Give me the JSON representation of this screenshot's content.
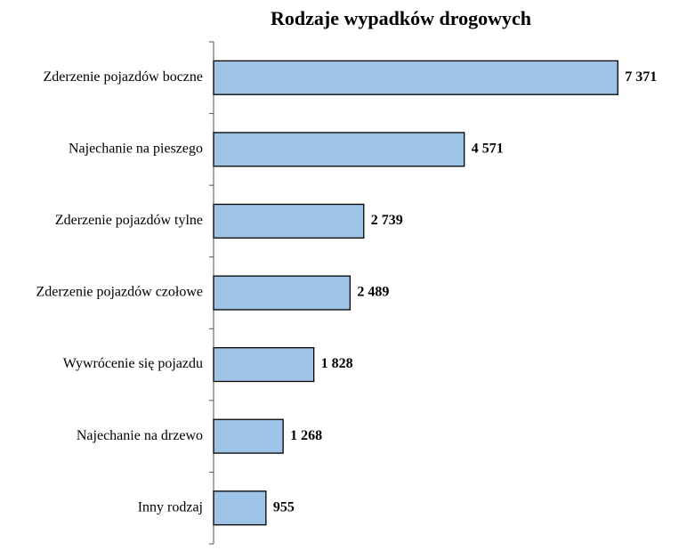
{
  "chart_data": {
    "type": "bar",
    "orientation": "horizontal",
    "title": "Rodzaje wypadków  drogowych",
    "categories": [
      "Zderzenie pojazdów boczne",
      "Najechanie na pieszego",
      "Zderzenie pojazdów tylne",
      "Zderzenie pojazdów czołowe",
      "Wywrócenie się pojazdu",
      "Najechanie na drzewo",
      "Inny rodzaj"
    ],
    "values": [
      7371,
      4571,
      2739,
      2489,
      1828,
      1268,
      955
    ],
    "value_labels": [
      "7 371",
      "4 571",
      "2 739",
      "2 489",
      "1 828",
      "1 268",
      "955"
    ],
    "xlabel": "",
    "ylabel": "",
    "xlim": [
      0,
      8000
    ],
    "grid": false,
    "legend": "none",
    "bar_color": "#9dc3e6",
    "bar_edge_color": "#000000"
  }
}
